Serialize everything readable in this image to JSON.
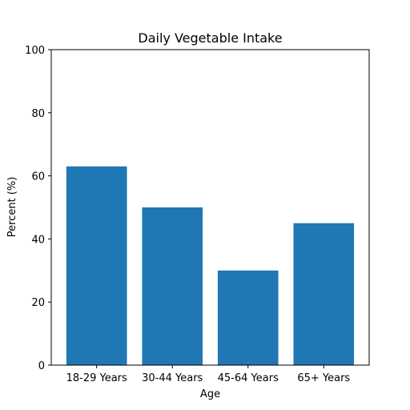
{
  "chart_data": {
    "type": "bar",
    "title": "Daily Vegetable Intake",
    "xlabel": "Age",
    "ylabel": "Percent (%)",
    "categories": [
      "18-29 Years",
      "30-44 Years",
      "45-64 Years",
      "65+ Years"
    ],
    "values": [
      63,
      50,
      30,
      45
    ],
    "ylim": [
      0,
      100
    ],
    "yticks": [
      0,
      20,
      40,
      60,
      80,
      100
    ],
    "bar_color": "#1f77b4",
    "grid": false,
    "legend": "none"
  }
}
